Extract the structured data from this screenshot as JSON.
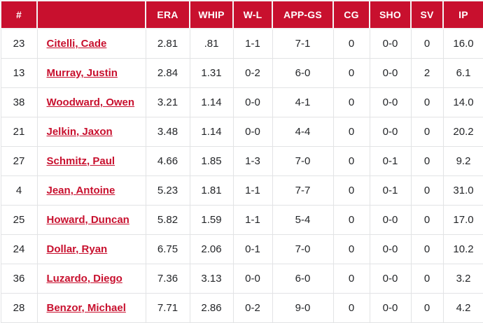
{
  "theme": {
    "header_bg": "#C8102E",
    "header_text": "#FFFFFF",
    "link_color": "#C8102E",
    "body_text": "#232528",
    "row_border": "#E2E3E5",
    "header_border": "#F4F4F4"
  },
  "table": {
    "columns": [
      {
        "key": "number",
        "label": "#"
      },
      {
        "key": "name",
        "label": ""
      },
      {
        "key": "era",
        "label": "ERA"
      },
      {
        "key": "whip",
        "label": "WHIP"
      },
      {
        "key": "wl",
        "label": "W-L"
      },
      {
        "key": "app_gs",
        "label": "APP-GS"
      },
      {
        "key": "cg",
        "label": "CG"
      },
      {
        "key": "sho",
        "label": "SHO"
      },
      {
        "key": "sv",
        "label": "SV"
      },
      {
        "key": "ip",
        "label": "IP"
      }
    ],
    "players": [
      {
        "number": "23",
        "name": "Citelli, Cade",
        "era": "2.81",
        "whip": ".81",
        "wl": "1-1",
        "app_gs": "7-1",
        "cg": "0",
        "sho": "0-0",
        "sv": "0",
        "ip": "16.0"
      },
      {
        "number": "13",
        "name": "Murray, Justin",
        "era": "2.84",
        "whip": "1.31",
        "wl": "0-2",
        "app_gs": "6-0",
        "cg": "0",
        "sho": "0-0",
        "sv": "2",
        "ip": "6.1"
      },
      {
        "number": "38",
        "name": "Woodward, Owen",
        "era": "3.21",
        "whip": "1.14",
        "wl": "0-0",
        "app_gs": "4-1",
        "cg": "0",
        "sho": "0-0",
        "sv": "0",
        "ip": "14.0"
      },
      {
        "number": "21",
        "name": "Jelkin, Jaxon",
        "era": "3.48",
        "whip": "1.14",
        "wl": "0-0",
        "app_gs": "4-4",
        "cg": "0",
        "sho": "0-0",
        "sv": "0",
        "ip": "20.2"
      },
      {
        "number": "27",
        "name": "Schmitz, Paul",
        "era": "4.66",
        "whip": "1.85",
        "wl": "1-3",
        "app_gs": "7-0",
        "cg": "0",
        "sho": "0-1",
        "sv": "0",
        "ip": "9.2"
      },
      {
        "number": "4",
        "name": "Jean, Antoine",
        "era": "5.23",
        "whip": "1.81",
        "wl": "1-1",
        "app_gs": "7-7",
        "cg": "0",
        "sho": "0-1",
        "sv": "0",
        "ip": "31.0"
      },
      {
        "number": "25",
        "name": "Howard, Duncan",
        "era": "5.82",
        "whip": "1.59",
        "wl": "1-1",
        "app_gs": "5-4",
        "cg": "0",
        "sho": "0-0",
        "sv": "0",
        "ip": "17.0"
      },
      {
        "number": "24",
        "name": "Dollar, Ryan",
        "era": "6.75",
        "whip": "2.06",
        "wl": "0-1",
        "app_gs": "7-0",
        "cg": "0",
        "sho": "0-0",
        "sv": "0",
        "ip": "10.2"
      },
      {
        "number": "36",
        "name": "Luzardo, Diego",
        "era": "7.36",
        "whip": "3.13",
        "wl": "0-0",
        "app_gs": "6-0",
        "cg": "0",
        "sho": "0-0",
        "sv": "0",
        "ip": "3.2"
      },
      {
        "number": "28",
        "name": "Benzor, Michael",
        "era": "7.71",
        "whip": "2.86",
        "wl": "0-2",
        "app_gs": "9-0",
        "cg": "0",
        "sho": "0-0",
        "sv": "0",
        "ip": "4.2"
      }
    ]
  },
  "chart_data": {
    "type": "table",
    "columns": [
      "#",
      "",
      "ERA",
      "WHIP",
      "W-L",
      "APP-GS",
      "CG",
      "SHO",
      "SV",
      "IP"
    ],
    "rows": [
      [
        "23",
        "Citelli, Cade",
        "2.81",
        ".81",
        "1-1",
        "7-1",
        "0",
        "0-0",
        "0",
        "16.0"
      ],
      [
        "13",
        "Murray, Justin",
        "2.84",
        "1.31",
        "0-2",
        "6-0",
        "0",
        "0-0",
        "2",
        "6.1"
      ],
      [
        "38",
        "Woodward, Owen",
        "3.21",
        "1.14",
        "0-0",
        "4-1",
        "0",
        "0-0",
        "0",
        "14.0"
      ],
      [
        "21",
        "Jelkin, Jaxon",
        "3.48",
        "1.14",
        "0-0",
        "4-4",
        "0",
        "0-0",
        "0",
        "20.2"
      ],
      [
        "27",
        "Schmitz, Paul",
        "4.66",
        "1.85",
        "1-3",
        "7-0",
        "0",
        "0-1",
        "0",
        "9.2"
      ],
      [
        "4",
        "Jean, Antoine",
        "5.23",
        "1.81",
        "1-1",
        "7-7",
        "0",
        "0-1",
        "0",
        "31.0"
      ],
      [
        "25",
        "Howard, Duncan",
        "5.82",
        "1.59",
        "1-1",
        "5-4",
        "0",
        "0-0",
        "0",
        "17.0"
      ],
      [
        "24",
        "Dollar, Ryan",
        "6.75",
        "2.06",
        "0-1",
        "7-0",
        "0",
        "0-0",
        "0",
        "10.2"
      ],
      [
        "36",
        "Luzardo, Diego",
        "7.36",
        "3.13",
        "0-0",
        "6-0",
        "0",
        "0-0",
        "0",
        "3.2"
      ],
      [
        "28",
        "Benzor, Michael",
        "7.71",
        "2.86",
        "0-2",
        "9-0",
        "0",
        "0-0",
        "0",
        "4.2"
      ]
    ]
  }
}
